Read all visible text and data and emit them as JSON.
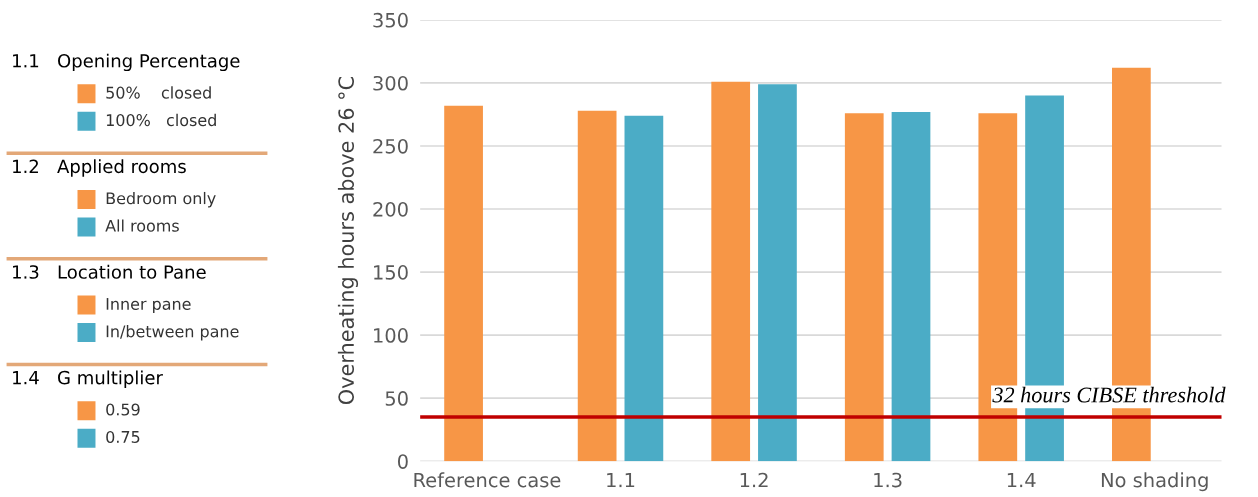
{
  "chart_data": [
    {
      "type": "other",
      "annotations": [
        "1.1   Opening Percentage",
        "50%    closed",
        "100%   closed",
        "1.2   Applied rooms",
        "Bedroom only",
        "All rooms",
        "1.3   Location to Pane",
        "Inner pane",
        "In/between pane",
        "1.4   G multiplier",
        "0.59",
        "0.75"
      ]
    },
    {
      "type": "bar",
      "ylabel": "Overheating hours above 26 °C",
      "categories": [
        "Reference case",
        "1.1",
        "1.2",
        "1.3",
        "1.4",
        "No shading"
      ],
      "series": [
        {
          "color": "#f79646",
          "values": [
            282,
            278,
            301,
            276,
            276,
            312
          ]
        },
        {
          "color": "#4bacc6",
          "values": [
            null,
            274,
            299,
            277,
            290,
            null
          ]
        }
      ],
      "ylim": [
        0,
        350
      ],
      "yticks": [
        0,
        50,
        100,
        150,
        200,
        250,
        300,
        350
      ],
      "grid": "y",
      "legend": false,
      "ref_lines": [
        {
          "axis": "y",
          "value": 35,
          "label": "32 hours CIBSE threshold",
          "color": "#c00000",
          "line_style": "solid"
        }
      ]
    }
  ]
}
